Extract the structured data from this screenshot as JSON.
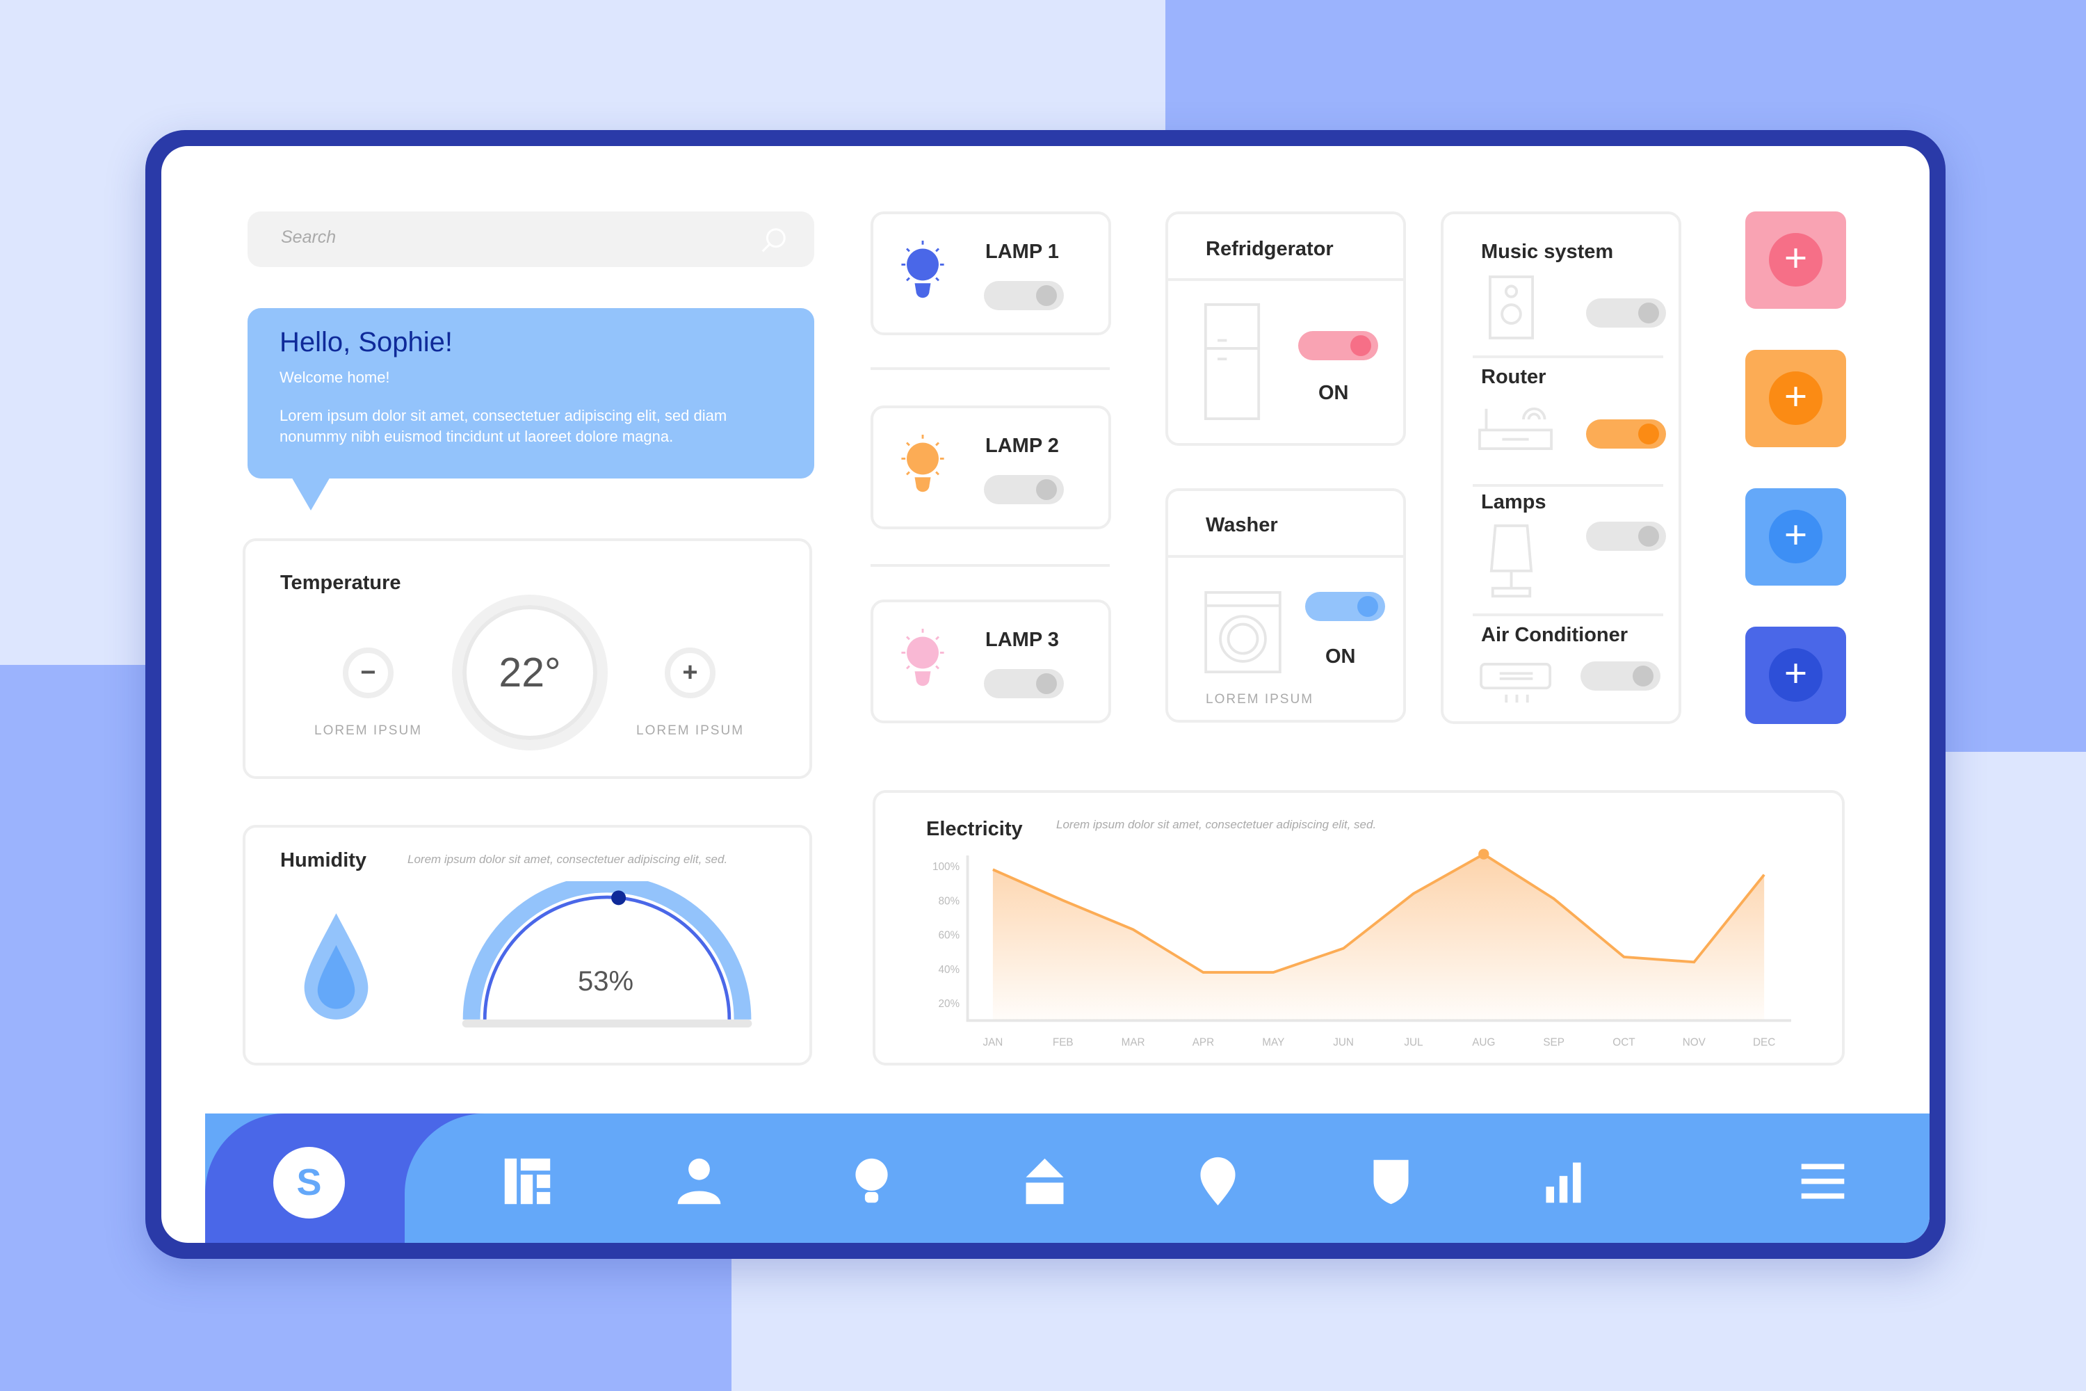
{
  "search": {
    "placeholder": "Search",
    "icon": "search-icon"
  },
  "greeting": {
    "title": "Hello, Sophie!",
    "subtitle": "Welcome home!",
    "body": "Lorem ipsum dolor sit amet, consectetuer adipiscing elit, sed diam nonummy nibh euismod tincidunt ut laoreet dolore magna."
  },
  "temperature": {
    "title": "Temperature",
    "value": "22°",
    "minus_label": "LOREM IPSUM",
    "plus_label": "LOREM IPSUM"
  },
  "humidity": {
    "title": "Humidity",
    "description": "Lorem ipsum dolor sit amet, consectetuer adipiscing elit, sed.",
    "value": "53%",
    "percent": 53
  },
  "lamps": [
    {
      "label": "LAMP 1",
      "color": "#4a67e8",
      "on": false
    },
    {
      "label": "LAMP 2",
      "color": "#fcac55",
      "on": false
    },
    {
      "label": "LAMP 3",
      "color": "#f9b8d4",
      "on": false
    }
  ],
  "refrigerator": {
    "title": "Refridgerator",
    "status": "ON",
    "on": true,
    "color": "#f66f87"
  },
  "washer": {
    "title": "Washer",
    "status": "ON",
    "footer": "LOREM IPSUM",
    "on": true,
    "color": "#64a8f9"
  },
  "devices": [
    {
      "label": "Music system",
      "on": false
    },
    {
      "label": "Router",
      "on": true,
      "color": "#fb8b14"
    },
    {
      "label": "Lamps",
      "on": false
    },
    {
      "label": "Air Conditioner",
      "on": false
    }
  ],
  "add_buttons": [
    {
      "color": "#f9a3b3",
      "accent": "#f66f87"
    },
    {
      "color": "#fcac55",
      "accent": "#fb8b14"
    },
    {
      "color": "#64a8f9",
      "accent": "#3d8ff5"
    },
    {
      "color": "#4a67e8",
      "accent": "#2d4fd8"
    }
  ],
  "electricity": {
    "title": "Electricity",
    "description": "Lorem ipsum dolor sit amet, consectetuer adipiscing elit, sed."
  },
  "chart_data": {
    "type": "area",
    "title": "Electricity",
    "categories": [
      "JAN",
      "FEB",
      "MAR",
      "APR",
      "MAY",
      "JUN",
      "JUL",
      "AUG",
      "SEP",
      "OCT",
      "NOV",
      "DEC"
    ],
    "values": [
      98,
      80,
      63,
      38,
      38,
      52,
      84,
      107,
      81,
      47,
      44,
      95
    ],
    "yticks": [
      "100%",
      "80%",
      "60%",
      "40%",
      "20%"
    ],
    "ytick_values": [
      100,
      80,
      60,
      40,
      20
    ],
    "ylim": [
      12,
      110
    ],
    "highlight": "AUG",
    "color": "#fcac55",
    "grid": false
  },
  "nav": {
    "avatar": "S",
    "items": [
      "dashboard-icon",
      "user-icon",
      "bulb-icon",
      "home-icon",
      "location-icon",
      "shield-icon",
      "bar-chart-icon",
      "menu-icon"
    ]
  }
}
